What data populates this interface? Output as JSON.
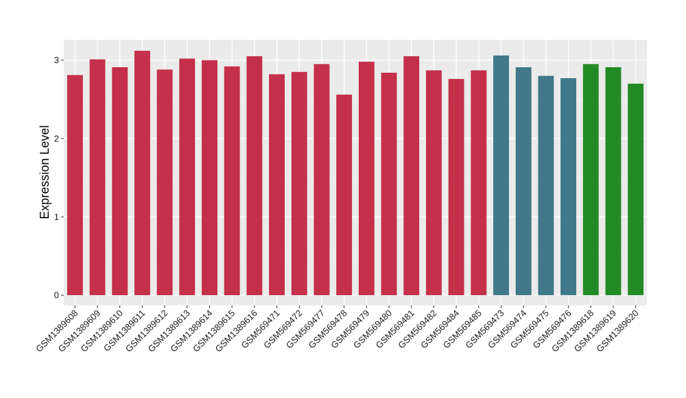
{
  "chart_data": {
    "type": "bar",
    "ylabel": "Expression Level",
    "xlabel": "",
    "ylim": [
      -0.13,
      3.26
    ],
    "yticks": [
      0,
      1,
      2,
      3
    ],
    "grid": true,
    "panel_background": "#ebebeb",
    "categories": [
      "GSM1389608",
      "GSM1389609",
      "GSM1389610",
      "GSM1389611",
      "GSM1389612",
      "GSM1389613",
      "GSM1389614",
      "GSM1389615",
      "GSM1389616",
      "GSM569471",
      "GSM569472",
      "GSM569477",
      "GSM569478",
      "GSM569479",
      "GSM569480",
      "GSM569481",
      "GSM569482",
      "GSM569484",
      "GSM569485",
      "GSM569473",
      "GSM569474",
      "GSM569475",
      "GSM569476",
      "GSM1389618",
      "GSM1389619",
      "GSM1389620"
    ],
    "values": [
      2.81,
      3.01,
      2.91,
      3.12,
      2.88,
      3.02,
      3.0,
      2.92,
      3.05,
      2.82,
      2.85,
      2.95,
      2.56,
      2.98,
      2.84,
      3.05,
      2.87,
      2.76,
      2.87,
      3.06,
      2.91,
      2.8,
      2.77,
      2.95,
      2.91,
      2.7
    ],
    "colors": [
      "#c4304a",
      "#c4304a",
      "#c4304a",
      "#c4304a",
      "#c4304a",
      "#c4304a",
      "#c4304a",
      "#c4304a",
      "#c4304a",
      "#c4304a",
      "#c4304a",
      "#c4304a",
      "#c4304a",
      "#c4304a",
      "#c4304a",
      "#c4304a",
      "#c4304a",
      "#c4304a",
      "#c4304a",
      "#41788a",
      "#41788a",
      "#41788a",
      "#41788a",
      "#238b26",
      "#238b26",
      "#238b26"
    ]
  }
}
